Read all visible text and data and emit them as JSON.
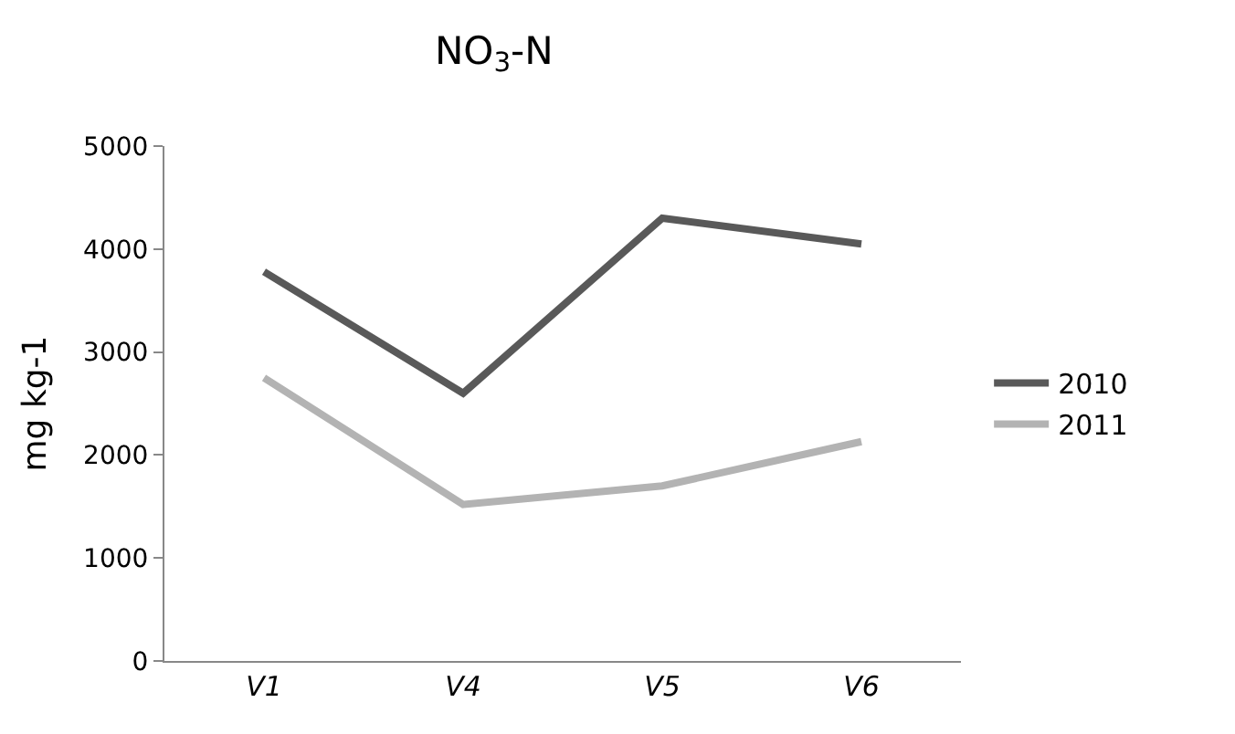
{
  "chart_data": {
    "type": "line",
    "title": "NO$_{3}$-N",
    "ylabel": "mg kg-1",
    "categories": [
      "V1",
      "V4",
      "V5",
      "V6"
    ],
    "series": [
      {
        "name": "2010",
        "color": "#595959",
        "values": [
          3780,
          2600,
          4300,
          4050
        ]
      },
      {
        "name": "2011",
        "color": "#b3b3b3",
        "values": [
          2750,
          1520,
          1700,
          2130
        ]
      }
    ],
    "ylim": [
      0,
      5000
    ],
    "yticks": [
      0,
      1000,
      2000,
      3000,
      4000,
      5000
    ],
    "grid": false,
    "legend": "right",
    "marker": "none",
    "line_style": "solid"
  }
}
